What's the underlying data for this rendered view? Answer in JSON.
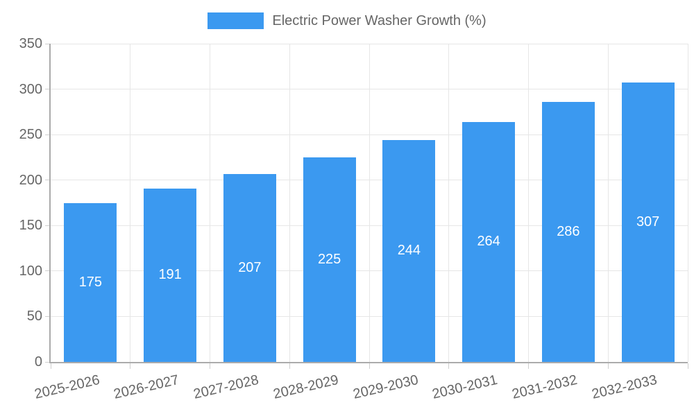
{
  "chart_data": {
    "type": "bar",
    "title": "Electric Power Washer Growth (%)",
    "categories": [
      "2025-2026",
      "2026-2027",
      "2027-2028",
      "2028-2029",
      "2029-2030",
      "2030-2031",
      "2031-2032",
      "2032-2033"
    ],
    "values": [
      175,
      191,
      207,
      225,
      244,
      264,
      286,
      307
    ],
    "xlabel": "",
    "ylabel": "",
    "ylim": [
      0,
      350
    ],
    "yticks": [
      0,
      50,
      100,
      150,
      200,
      250,
      300,
      350
    ],
    "grid": true,
    "legend_position": "top",
    "value_labels": "inside-center"
  },
  "legend": {
    "label": "Electric Power Washer Growth (%)"
  },
  "colors": {
    "bar": "#3b99f0",
    "grid": "#e6e6e6",
    "axis": "#ababab",
    "tick_line": "#cfcfcf",
    "tick_text": "#666666",
    "legend_text": "#666666",
    "value_text": "#ffffff",
    "background": "#ffffff"
  }
}
